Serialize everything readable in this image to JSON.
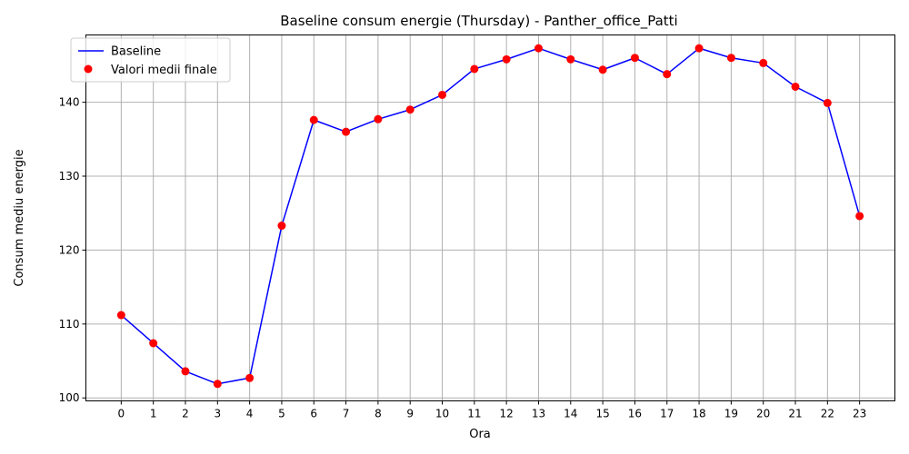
{
  "chart_data": {
    "type": "line",
    "title": "Baseline consum energie (Thursday) - Panther_office_Patti",
    "xlabel": "Ora",
    "ylabel": "Consum mediu energie",
    "x": [
      0,
      1,
      2,
      3,
      4,
      5,
      6,
      7,
      8,
      9,
      10,
      11,
      12,
      13,
      14,
      15,
      16,
      17,
      18,
      19,
      20,
      21,
      22,
      23
    ],
    "x_ticks": [
      "0",
      "1",
      "2",
      "3",
      "4",
      "5",
      "6",
      "7",
      "8",
      "9",
      "10",
      "11",
      "12",
      "13",
      "14",
      "15",
      "16",
      "17",
      "18",
      "19",
      "20",
      "21",
      "22",
      "23"
    ],
    "y_ticks": [
      100,
      110,
      120,
      130,
      140
    ],
    "xlim": [
      -1.1,
      24.1
    ],
    "ylim": [
      99.6,
      149.1
    ],
    "grid": true,
    "legend_position": "upper-left",
    "series": [
      {
        "name": "Baseline",
        "kind": "line",
        "color": "#0000ff",
        "values": [
          111.2,
          107.4,
          103.6,
          101.9,
          102.7,
          123.3,
          137.6,
          136.0,
          137.7,
          139.0,
          141.0,
          144.5,
          145.8,
          147.3,
          145.8,
          144.4,
          146.0,
          143.8,
          147.3,
          146.0,
          145.3,
          142.1,
          139.9,
          124.6
        ]
      },
      {
        "name": "Valori medii finale",
        "kind": "scatter",
        "color": "#ff0000",
        "values": [
          111.2,
          107.4,
          103.6,
          101.9,
          102.7,
          123.3,
          137.6,
          136.0,
          137.7,
          139.0,
          141.0,
          144.5,
          145.8,
          147.3,
          145.8,
          144.4,
          146.0,
          143.8,
          147.3,
          146.0,
          145.3,
          142.1,
          139.9,
          124.6
        ]
      }
    ]
  }
}
